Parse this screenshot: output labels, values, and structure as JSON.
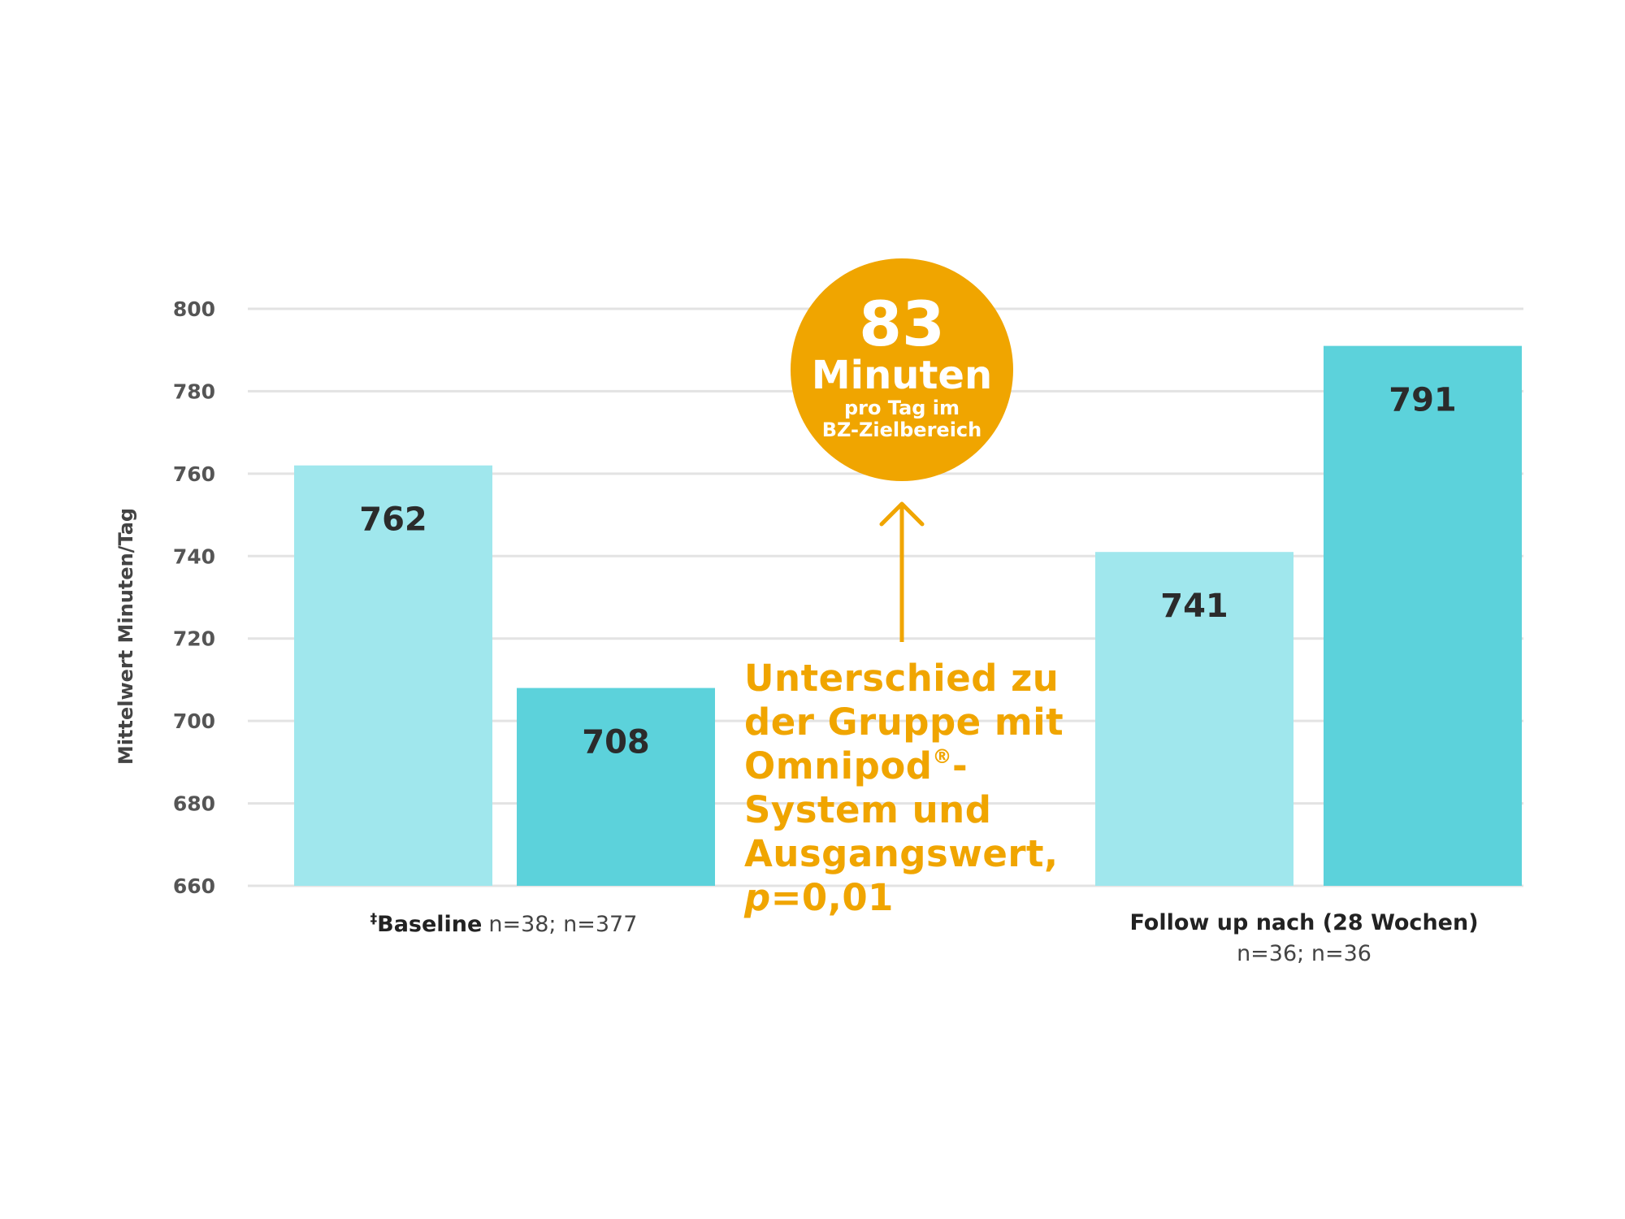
{
  "chart_data": {
    "type": "bar",
    "ylabel": "Mittelwert Minuten/Tag",
    "ylim": [
      660,
      800
    ],
    "yticks": [
      800,
      780,
      760,
      740,
      720,
      700,
      680,
      660
    ],
    "grid": true,
    "groups": [
      {
        "label_prefix": "‡",
        "label_bold": "Baseline",
        "label_normal": "n=38; n=377",
        "bars": [
          {
            "value": 762,
            "label": "762",
            "color": "#a0e7ed"
          },
          {
            "value": 708,
            "label": "708",
            "color": "#5cd2db"
          }
        ]
      },
      {
        "label_bold": "Follow up nach (28 Wochen)",
        "label_normal": "n=36; n=36",
        "bars": [
          {
            "value": 741,
            "label": "741",
            "color": "#a0e7ed"
          },
          {
            "value": 791,
            "label": "791",
            "color": "#5cd2db"
          }
        ]
      }
    ]
  },
  "badge": {
    "number": "83",
    "unit": "Minuten",
    "line1": "pro Tag im",
    "line2": "BZ-Zielbereich",
    "color": "#f0a500"
  },
  "callout": {
    "line1": "Unterschied zu",
    "line2": "der Gruppe mit",
    "line3": "Omnipod",
    "line3_sup": "®",
    "line3_suffix": "-",
    "line4": "System und",
    "line5": "Ausgangswert,",
    "line6_italic": "p",
    "line6_rest": "=0,01",
    "color": "#f0a500"
  }
}
